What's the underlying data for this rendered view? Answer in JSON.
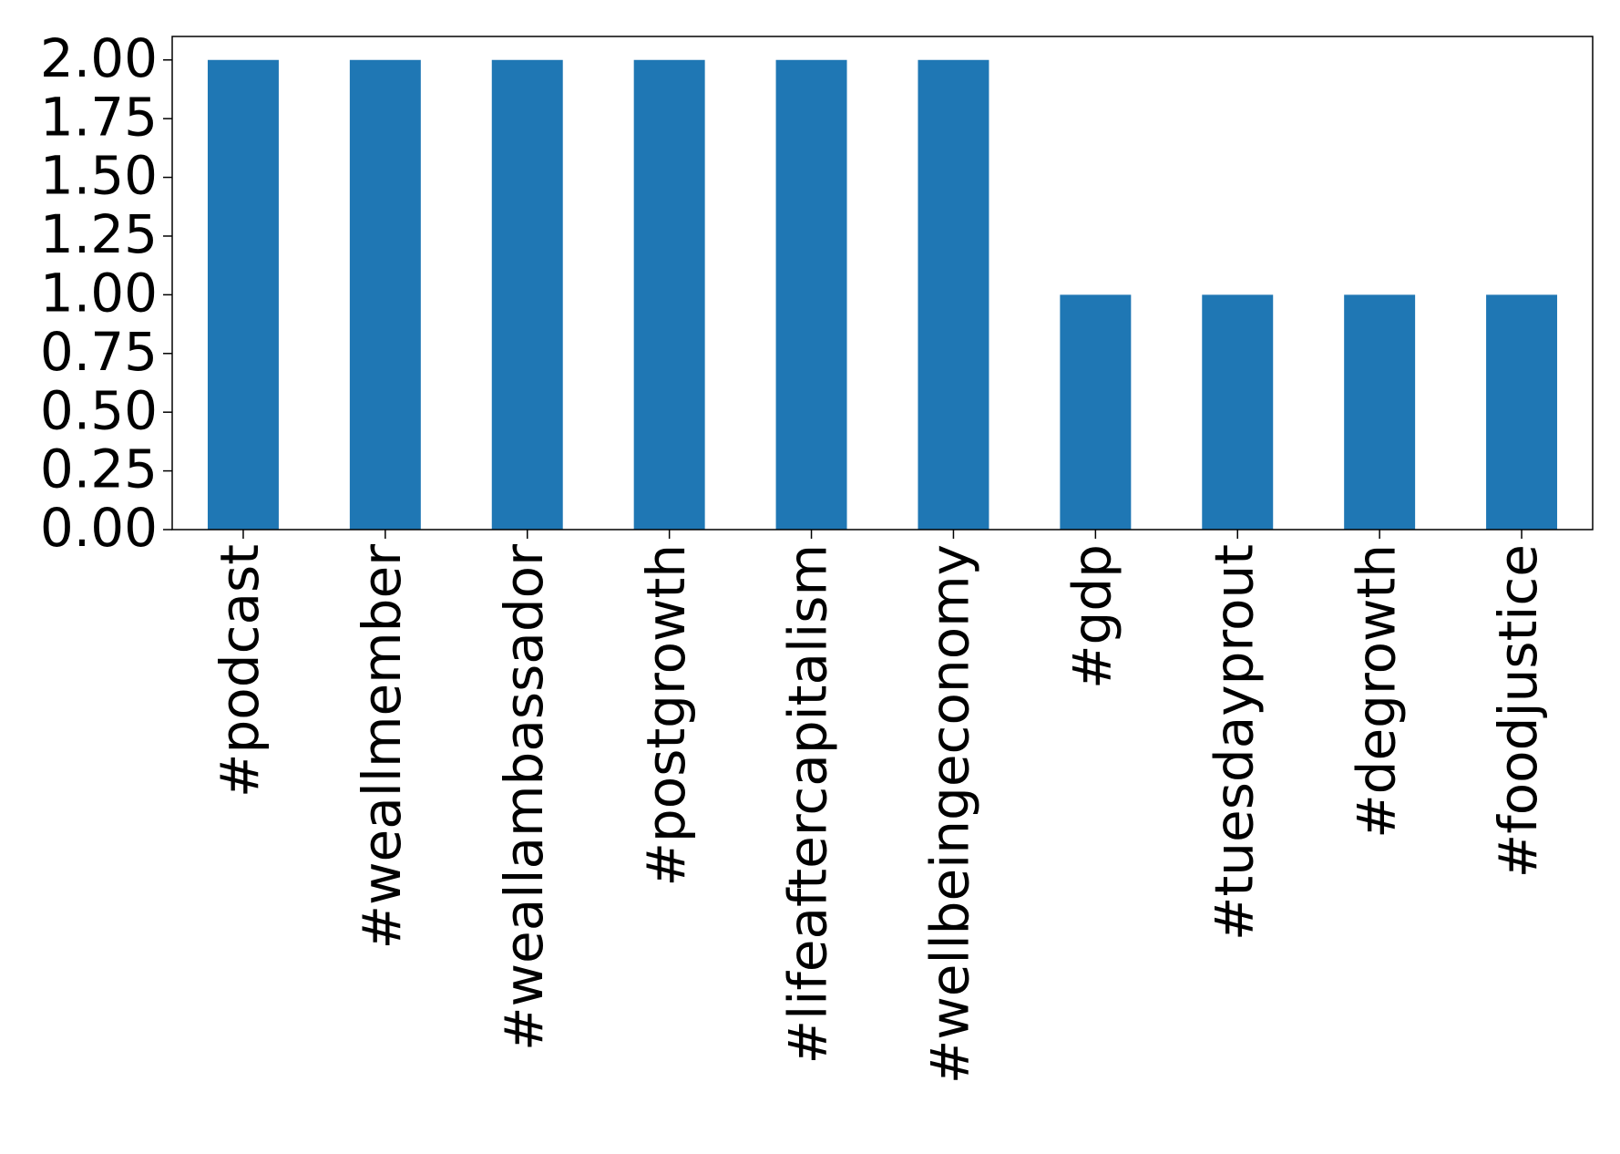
{
  "chart_data": {
    "type": "bar",
    "categories": [
      "#podcast",
      "#weallmember",
      "#weallambassador",
      "#postgrowth",
      "#lifeaftercapitalism",
      "#wellbeingeconomy",
      "#gdp",
      "#tuesdayprout",
      "#degrowth",
      "#foodjustice"
    ],
    "values": [
      2,
      2,
      2,
      2,
      2,
      2,
      1,
      1,
      1,
      1
    ],
    "color": "#1f77b4",
    "ylim": [
      0,
      2.1
    ],
    "yticks": [
      {
        "value": 0,
        "label": "0.00"
      },
      {
        "value": 0.25,
        "label": "0.25"
      },
      {
        "value": 0.5,
        "label": "0.50"
      },
      {
        "value": 0.75,
        "label": "0.75"
      },
      {
        "value": 1,
        "label": "1.00"
      },
      {
        "value": 1.25,
        "label": "1.25"
      },
      {
        "value": 1.5,
        "label": "1.50"
      },
      {
        "value": 1.75,
        "label": "1.75"
      },
      {
        "value": 2,
        "label": "2.00"
      }
    ],
    "grid": false
  }
}
